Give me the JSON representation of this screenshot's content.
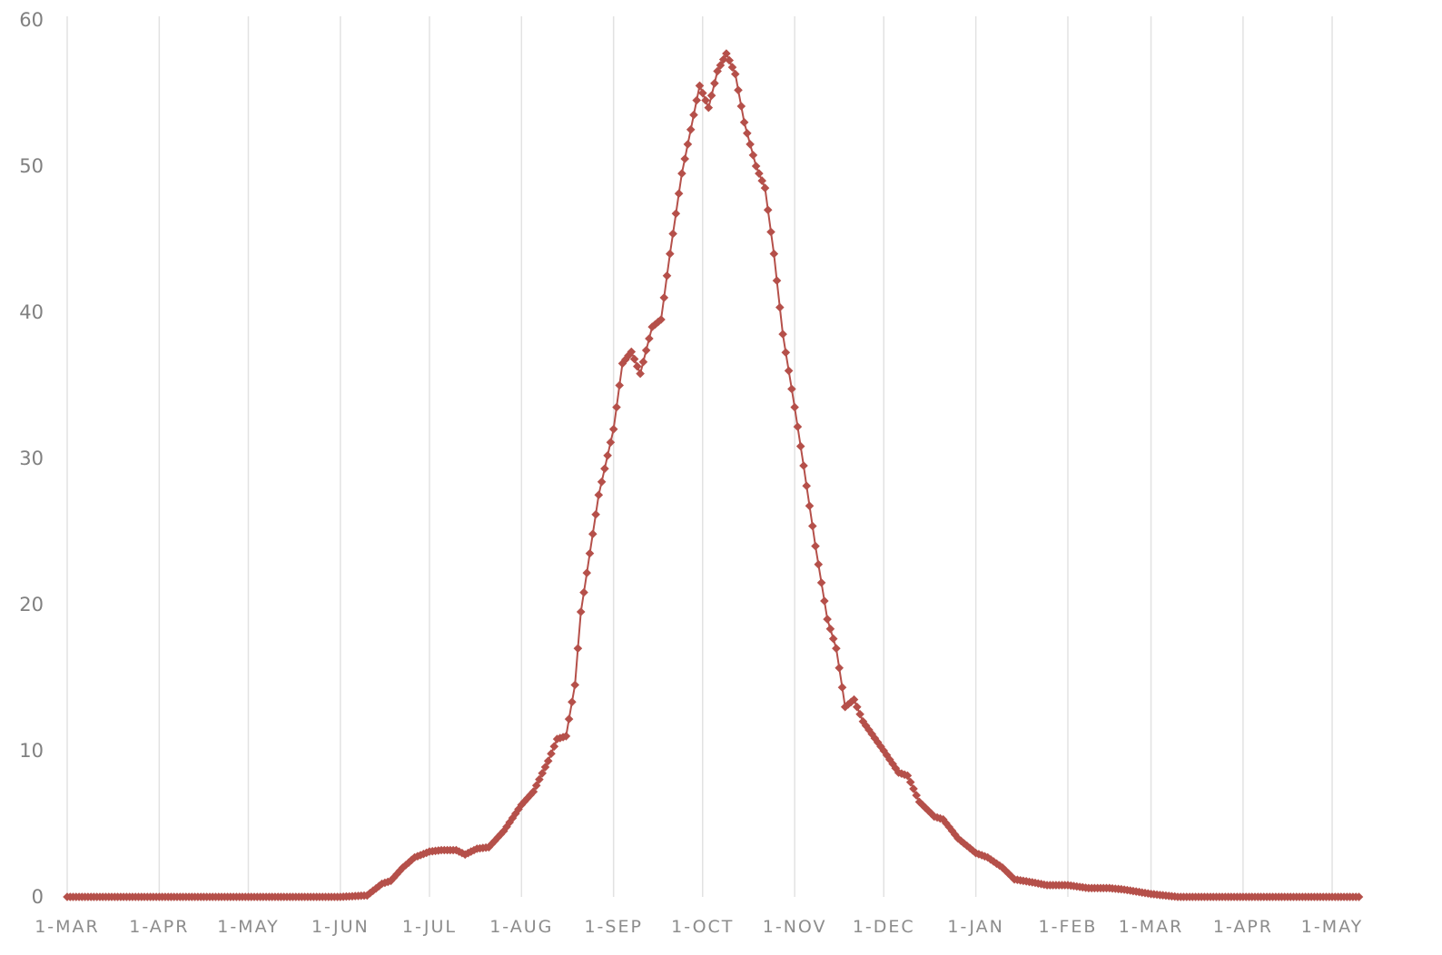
{
  "chart_data": {
    "type": "line",
    "title": "",
    "xlabel": "",
    "ylabel": "",
    "ylim": [
      0,
      60
    ],
    "y_ticks": [
      0,
      10,
      20,
      30,
      40,
      50,
      60
    ],
    "x_ticks": [
      "1-MAR",
      "1-APR",
      "1-MAY",
      "1-JUN",
      "1-JUL",
      "1-AUG",
      "1-SEP",
      "1-OCT",
      "1-NOV",
      "1-DEC",
      "1-JAN",
      "1-FEB",
      "1-MAR",
      "1-APR",
      "1-MAY"
    ],
    "grid": "vertical",
    "legend": "none",
    "colors": {
      "series": "#b5504a",
      "grid": "#e2e2e2"
    },
    "series": [
      {
        "marker": "diamond",
        "points": [
          [
            "1-MAR",
            0
          ],
          [
            "1-APR",
            0
          ],
          [
            "1-MAY",
            0
          ],
          [
            "1-JUN",
            0
          ],
          [
            "10-JUN",
            0.1
          ],
          [
            "15-JUN",
            0.9
          ],
          [
            "18-JUN",
            1.1
          ],
          [
            "22-JUN",
            2.0
          ],
          [
            "26-JUN",
            2.7
          ],
          [
            "1-JUL",
            3.1
          ],
          [
            "5-JUL",
            3.2
          ],
          [
            "10-JUL",
            3.2
          ],
          [
            "13-JUL",
            2.9
          ],
          [
            "17-JUL",
            3.3
          ],
          [
            "21-JUL",
            3.4
          ],
          [
            "26-JUL",
            4.5
          ],
          [
            "1-AUG",
            6.3
          ],
          [
            "5-AUG",
            7.2
          ],
          [
            "10-AUG",
            9.3
          ],
          [
            "13-AUG",
            10.8
          ],
          [
            "16-AUG",
            11.0
          ],
          [
            "19-AUG",
            14.5
          ],
          [
            "21-AUG",
            19.5
          ],
          [
            "24-AUG",
            23.5
          ],
          [
            "27-AUG",
            27.5
          ],
          [
            "1-SEP",
            32.0
          ],
          [
            "4-SEP",
            36.5
          ],
          [
            "7-SEP",
            37.3
          ],
          [
            "10-SEP",
            35.8
          ],
          [
            "14-SEP",
            39.0
          ],
          [
            "17-SEP",
            39.5
          ],
          [
            "20-SEP",
            44.0
          ],
          [
            "24-SEP",
            49.5
          ],
          [
            "27-SEP",
            52.5
          ],
          [
            "30-SEP",
            55.5
          ],
          [
            "3-OCT",
            54.0
          ],
          [
            "6-OCT",
            56.5
          ],
          [
            "9-OCT",
            57.7
          ],
          [
            "12-OCT",
            56.3
          ],
          [
            "15-OCT",
            53.0
          ],
          [
            "19-OCT",
            50.0
          ],
          [
            "22-OCT",
            48.5
          ],
          [
            "25-OCT",
            44.0
          ],
          [
            "28-OCT",
            38.5
          ],
          [
            "1-NOV",
            33.5
          ],
          [
            "4-NOV",
            29.5
          ],
          [
            "8-NOV",
            24.0
          ],
          [
            "12-NOV",
            19.0
          ],
          [
            "15-NOV",
            17.0
          ],
          [
            "18-NOV",
            13.0
          ],
          [
            "21-NOV",
            13.5
          ],
          [
            "24-NOV",
            12.0
          ],
          [
            "1-DEC",
            10.0
          ],
          [
            "6-DEC",
            8.5
          ],
          [
            "9-DEC",
            8.3
          ],
          [
            "13-DEC",
            6.5
          ],
          [
            "18-DEC",
            5.5
          ],
          [
            "21-DEC",
            5.3
          ],
          [
            "26-DEC",
            4.0
          ],
          [
            "1-JAN",
            3.0
          ],
          [
            "5-JAN",
            2.7
          ],
          [
            "10-JAN",
            2.0
          ],
          [
            "14-JAN",
            1.2
          ],
          [
            "20-JAN",
            1.0
          ],
          [
            "25-JAN",
            0.8
          ],
          [
            "1-FEB",
            0.8
          ],
          [
            "8-FEB",
            0.6
          ],
          [
            "15-FEB",
            0.6
          ],
          [
            "20-FEB",
            0.5
          ],
          [
            "1-MAR",
            0.2
          ],
          [
            "10-MAR",
            0
          ],
          [
            "1-APR",
            0
          ],
          [
            "1-MAY",
            0
          ],
          [
            "10-MAY",
            0
          ]
        ]
      }
    ]
  }
}
